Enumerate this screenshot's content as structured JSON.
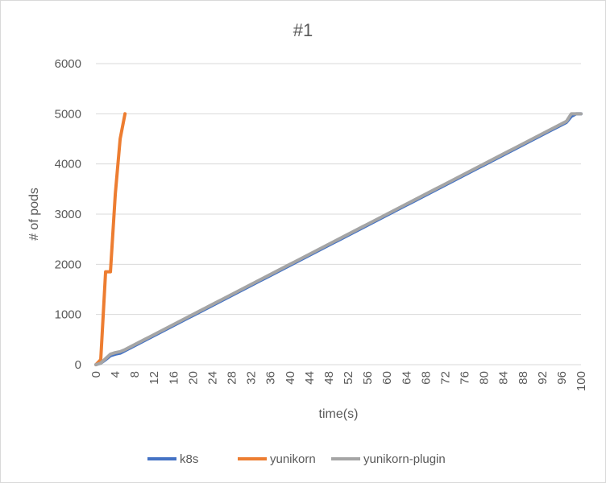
{
  "chart_data": {
    "type": "line",
    "title": "#1",
    "xlabel": "time(s)",
    "ylabel": "# of pods",
    "ylim": [
      0,
      6000
    ],
    "yticks": [
      0,
      1000,
      2000,
      3000,
      4000,
      5000,
      6000
    ],
    "xlim": [
      0,
      100
    ],
    "xticks": [
      0,
      4,
      8,
      12,
      16,
      20,
      24,
      28,
      32,
      36,
      40,
      44,
      48,
      52,
      56,
      60,
      64,
      68,
      72,
      76,
      80,
      84,
      88,
      92,
      96,
      100
    ],
    "grid": true,
    "legend_position": "bottom",
    "series": [
      {
        "name": "k8s",
        "color": "#4472C4",
        "x": [
          0,
          1,
          2,
          3,
          4,
          5,
          6,
          7,
          8,
          9,
          10,
          11,
          12,
          13,
          14,
          15,
          16,
          17,
          18,
          19,
          20,
          21,
          22,
          23,
          24,
          25,
          26,
          27,
          28,
          29,
          30,
          31,
          32,
          33,
          34,
          35,
          36,
          37,
          38,
          39,
          40,
          41,
          42,
          43,
          44,
          45,
          46,
          47,
          48,
          49,
          50,
          51,
          52,
          53,
          54,
          55,
          56,
          57,
          58,
          59,
          60,
          61,
          62,
          63,
          64,
          65,
          66,
          67,
          68,
          69,
          70,
          71,
          72,
          73,
          74,
          75,
          76,
          77,
          78,
          79,
          80,
          81,
          82,
          83,
          84,
          85,
          86,
          87,
          88,
          89,
          90,
          91,
          92,
          93,
          94,
          95,
          96,
          97,
          98,
          99,
          100
        ],
        "values": [
          0,
          30,
          100,
          180,
          210,
          230,
          280,
          330,
          380,
          430,
          480,
          530,
          580,
          630,
          680,
          730,
          780,
          830,
          880,
          930,
          980,
          1030,
          1080,
          1130,
          1180,
          1230,
          1280,
          1330,
          1380,
          1430,
          1480,
          1530,
          1580,
          1630,
          1680,
          1730,
          1780,
          1830,
          1880,
          1930,
          1980,
          2030,
          2080,
          2130,
          2180,
          2230,
          2280,
          2330,
          2380,
          2430,
          2480,
          2530,
          2580,
          2630,
          2680,
          2730,
          2780,
          2830,
          2880,
          2930,
          2980,
          3030,
          3080,
          3130,
          3180,
          3230,
          3280,
          3330,
          3380,
          3430,
          3480,
          3530,
          3580,
          3630,
          3680,
          3730,
          3780,
          3830,
          3880,
          3930,
          3980,
          4030,
          4080,
          4130,
          4180,
          4230,
          4280,
          4330,
          4380,
          4430,
          4480,
          4530,
          4580,
          4630,
          4680,
          4730,
          4780,
          4830,
          4950,
          5000,
          5000
        ]
      },
      {
        "name": "yunikorn",
        "color": "#ED7D31",
        "x": [
          0,
          1,
          2,
          3,
          4,
          5,
          6
        ],
        "values": [
          0,
          100,
          1850,
          1850,
          3400,
          4500,
          5000
        ]
      },
      {
        "name": "yunikorn-plugin",
        "color": "#A5A5A5",
        "x": [
          0,
          1,
          2,
          3,
          4,
          5,
          6,
          7,
          8,
          9,
          10,
          11,
          12,
          13,
          14,
          15,
          16,
          17,
          18,
          19,
          20,
          21,
          22,
          23,
          24,
          25,
          26,
          27,
          28,
          29,
          30,
          31,
          32,
          33,
          34,
          35,
          36,
          37,
          38,
          39,
          40,
          41,
          42,
          43,
          44,
          45,
          46,
          47,
          48,
          49,
          50,
          51,
          52,
          53,
          54,
          55,
          56,
          57,
          58,
          59,
          60,
          61,
          62,
          63,
          64,
          65,
          66,
          67,
          68,
          69,
          70,
          71,
          72,
          73,
          74,
          75,
          76,
          77,
          78,
          79,
          80,
          81,
          82,
          83,
          84,
          85,
          86,
          87,
          88,
          89,
          90,
          91,
          92,
          93,
          94,
          95,
          96,
          97,
          98,
          99,
          100
        ],
        "values": [
          0,
          30,
          120,
          210,
          240,
          260,
          300,
          350,
          400,
          450,
          500,
          550,
          600,
          650,
          700,
          750,
          800,
          850,
          900,
          950,
          1000,
          1050,
          1100,
          1150,
          1200,
          1250,
          1300,
          1350,
          1400,
          1450,
          1500,
          1550,
          1600,
          1650,
          1700,
          1750,
          1800,
          1850,
          1900,
          1950,
          2000,
          2050,
          2100,
          2150,
          2200,
          2250,
          2300,
          2350,
          2400,
          2450,
          2500,
          2550,
          2600,
          2650,
          2700,
          2750,
          2800,
          2850,
          2900,
          2950,
          3000,
          3050,
          3100,
          3150,
          3200,
          3250,
          3300,
          3350,
          3400,
          3450,
          3500,
          3550,
          3600,
          3650,
          3700,
          3750,
          3800,
          3850,
          3900,
          3950,
          4000,
          4050,
          4100,
          4150,
          4200,
          4250,
          4300,
          4350,
          4400,
          4450,
          4500,
          4550,
          4600,
          4650,
          4700,
          4750,
          4800,
          4850,
          5000,
          5000,
          5000
        ]
      }
    ]
  }
}
